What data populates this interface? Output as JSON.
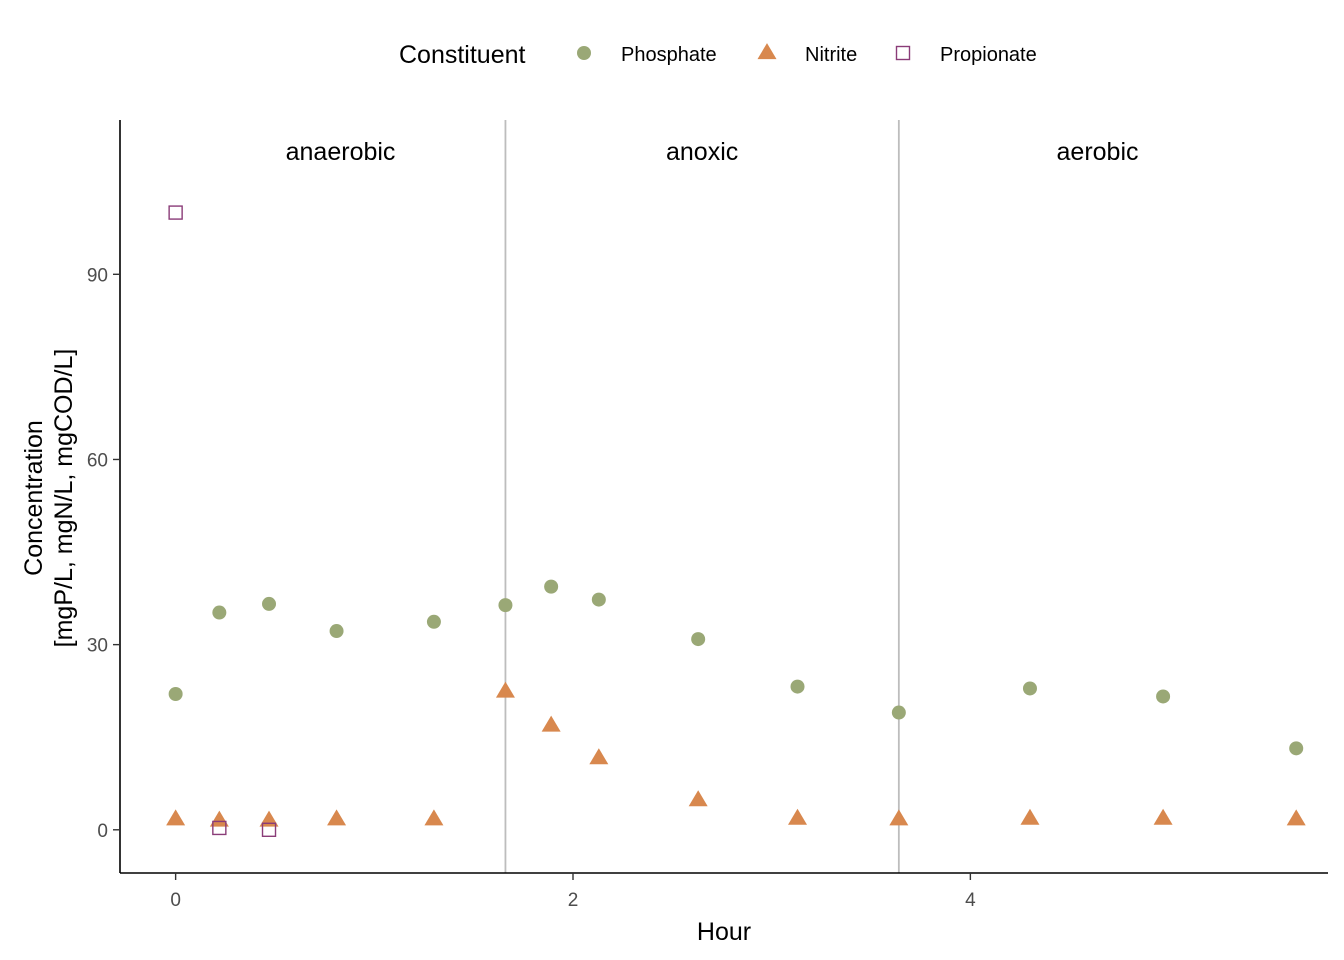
{
  "chart_data": {
    "type": "scatter",
    "xlabel": "Hour",
    "ylabel_lines": [
      "Concentration",
      "[mgP/L, mgN/L, mgCOD/L]"
    ],
    "xlim": [
      -0.28,
      5.8
    ],
    "ylim": [
      -7,
      115
    ],
    "x_ticks": [
      0,
      2,
      4
    ],
    "y_ticks": [
      0,
      30,
      60,
      90
    ],
    "grid": false,
    "legend": {
      "title": "Constituent",
      "position": "top"
    },
    "phase_boundaries": [
      1.66,
      3.64
    ],
    "phases": [
      {
        "label": "anaerobic",
        "x": 0.83
      },
      {
        "label": "anoxic",
        "x": 2.65
      },
      {
        "label": "aerobic",
        "x": 4.64
      }
    ],
    "phase_label_y": 110,
    "series": [
      {
        "name": "Phosphate",
        "shape": "circle",
        "color": "#9aa876",
        "points": [
          {
            "x": 0.0,
            "y": 22.0
          },
          {
            "x": 0.22,
            "y": 35.2
          },
          {
            "x": 0.47,
            "y": 36.6
          },
          {
            "x": 0.81,
            "y": 32.2
          },
          {
            "x": 1.3,
            "y": 33.7
          },
          {
            "x": 1.66,
            "y": 36.4
          },
          {
            "x": 1.89,
            "y": 39.4
          },
          {
            "x": 2.13,
            "y": 37.3
          },
          {
            "x": 2.63,
            "y": 30.9
          },
          {
            "x": 3.13,
            "y": 23.2
          },
          {
            "x": 3.64,
            "y": 19.0
          },
          {
            "x": 4.3,
            "y": 22.9
          },
          {
            "x": 4.97,
            "y": 21.6
          },
          {
            "x": 5.64,
            "y": 13.2
          }
        ]
      },
      {
        "name": "Nitrite",
        "shape": "triangle",
        "color": "#d8884e",
        "points": [
          {
            "x": 0.0,
            "y": 1.7
          },
          {
            "x": 0.22,
            "y": 1.5
          },
          {
            "x": 0.47,
            "y": 1.5
          },
          {
            "x": 0.81,
            "y": 1.7
          },
          {
            "x": 1.3,
            "y": 1.7
          },
          {
            "x": 1.66,
            "y": 22.4
          },
          {
            "x": 1.89,
            "y": 16.9
          },
          {
            "x": 2.13,
            "y": 11.6
          },
          {
            "x": 2.63,
            "y": 4.8
          },
          {
            "x": 3.13,
            "y": 1.8
          },
          {
            "x": 3.64,
            "y": 1.7
          },
          {
            "x": 4.3,
            "y": 1.8
          },
          {
            "x": 4.97,
            "y": 1.8
          },
          {
            "x": 5.64,
            "y": 1.7
          }
        ]
      },
      {
        "name": "Propionate",
        "shape": "square-open",
        "color": "#8a3c78",
        "points": [
          {
            "x": 0.0,
            "y": 100.0
          },
          {
            "x": 0.22,
            "y": 0.3
          },
          {
            "x": 0.47,
            "y": 0.0
          }
        ]
      }
    ]
  }
}
